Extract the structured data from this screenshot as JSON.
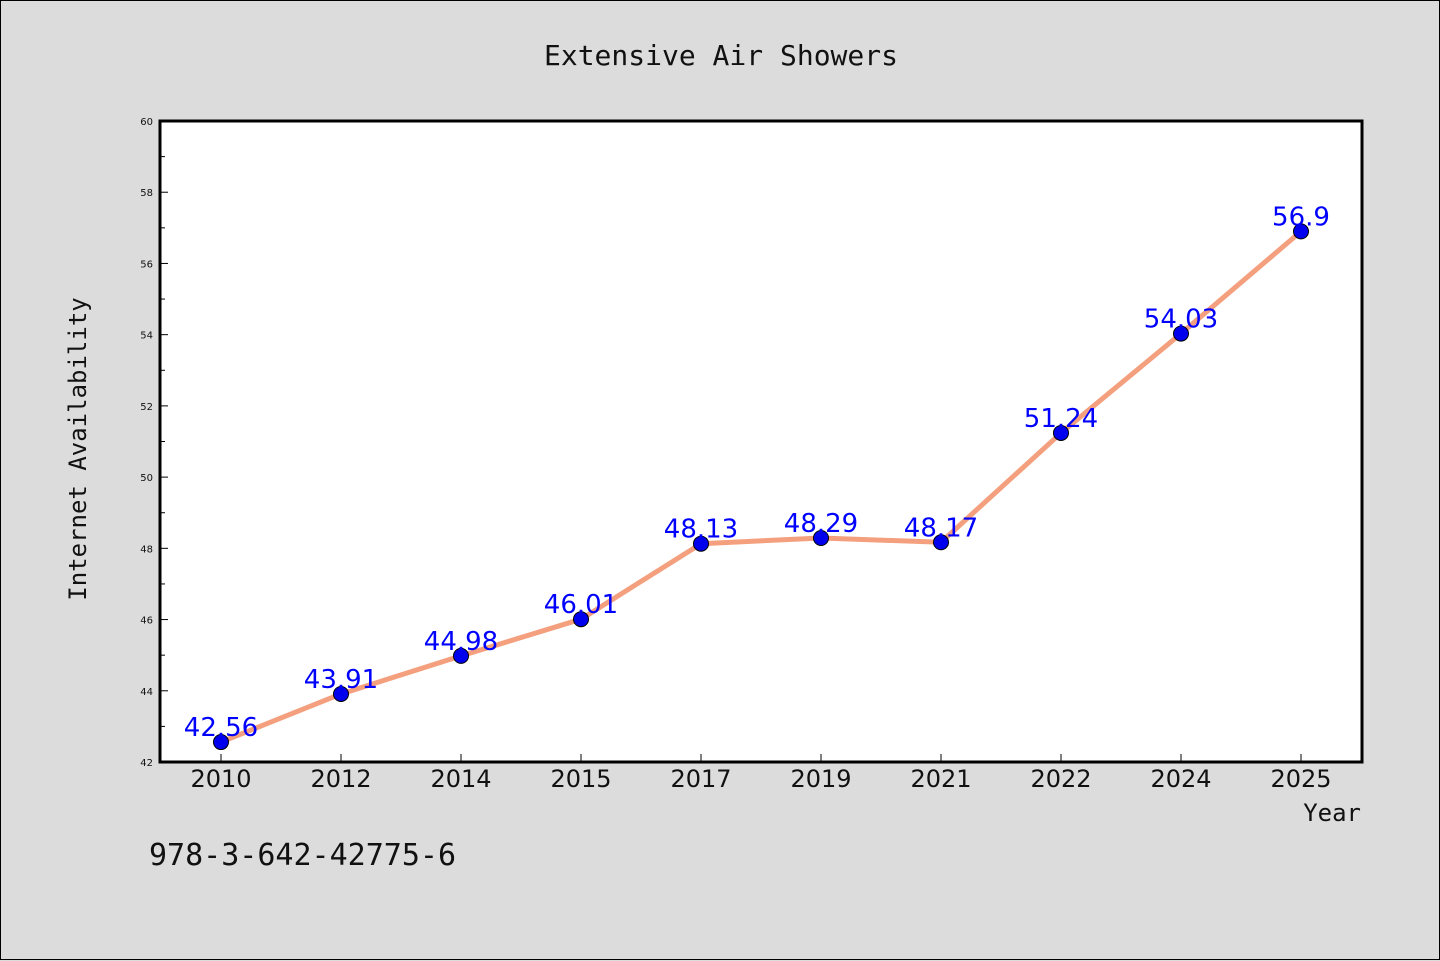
{
  "chart_data": {
    "type": "line",
    "title": "Extensive Air Showers",
    "xlabel": "Year",
    "ylabel": "Internet Availability",
    "categories": [
      "2010",
      "2012",
      "2014",
      "2015",
      "2017",
      "2019",
      "2021",
      "2022",
      "2024",
      "2025"
    ],
    "series": [
      {
        "values": [
          42.56,
          43.91,
          44.98,
          46.01,
          48.13,
          48.29,
          48.17,
          51.24,
          54.03,
          56.9
        ],
        "labels": [
          "42.56",
          "43.91",
          "44.98",
          "46.01",
          "48.13",
          "48.29",
          "48.17",
          "51.24",
          "54.03",
          "56.9"
        ],
        "line_color": "#f4a07e",
        "marker_color": "#0000ee"
      }
    ],
    "ylim": [
      42,
      60
    ],
    "yticks": [
      42,
      44,
      46,
      48,
      50,
      52,
      54,
      56,
      58,
      60
    ],
    "grid": false,
    "legend": "none"
  },
  "annotation": {
    "text": "978-3-642-42775-6"
  }
}
